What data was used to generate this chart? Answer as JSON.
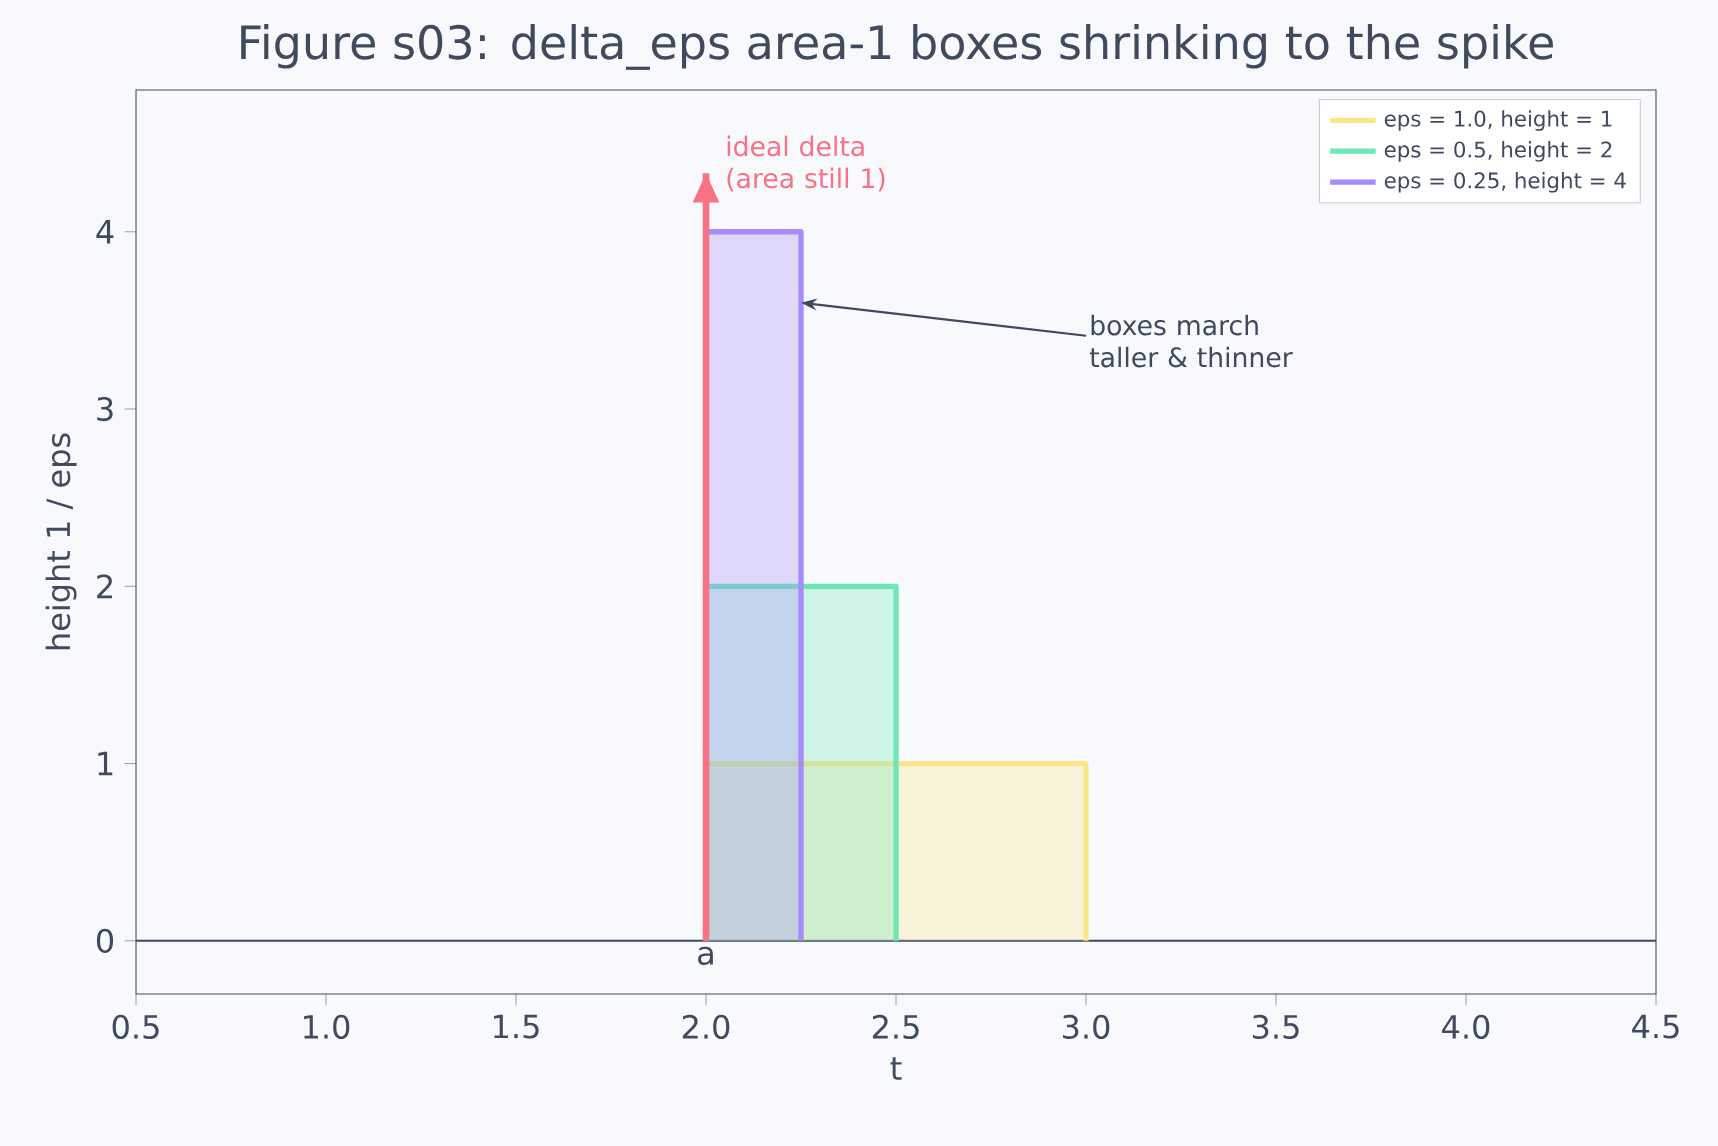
{
  "chart_data": {
    "type": "area",
    "title": "Figure s03: delta_eps area-1 boxes shrinking to the spike",
    "xlabel": "t",
    "ylabel": "height  1 / eps",
    "series": [
      {
        "name": "eps = 1.0,  height = 1",
        "color": "#fde68a",
        "x": [
          2,
          2,
          3,
          3
        ],
        "values": [
          0,
          1,
          1,
          0
        ]
      },
      {
        "name": "eps = 0.5,  height = 2",
        "color": "#6ee7b7",
        "x": [
          2,
          2,
          2.5,
          2.5
        ],
        "values": [
          0,
          2,
          2,
          0
        ]
      },
      {
        "name": "eps = 0.25,  height = 4",
        "color": "#a78bfa",
        "x": [
          2,
          2,
          2.25,
          2.25
        ],
        "values": [
          0,
          4,
          4,
          0
        ]
      },
      {
        "type": "line",
        "color": "#f87185",
        "x": [
          2,
          2
        ],
        "values": [
          0,
          4.33
        ]
      }
    ],
    "annotations": [
      "ideal delta (area still 1)",
      {
        "text": "boxes march taller & thinner",
        "x": 2.25,
        "y": 3.6
      },
      {
        "text": "a",
        "x": 2,
        "y": 0
      }
    ],
    "ref_lines": [
      {
        "axis": "y",
        "value": 0,
        "color": "#3f4a5e"
      }
    ],
    "xlim": [
      0.5,
      4.5
    ],
    "ylim": [
      -0.3,
      4.8
    ],
    "xticks": [
      0.5,
      {
        "value": 1,
        "label": "1.0"
      },
      1.5,
      {
        "value": 2,
        "label": "2.0"
      },
      2.5,
      {
        "value": 3,
        "label": "3.0"
      },
      3.5,
      {
        "value": 4,
        "label": "4.0"
      },
      4.5
    ],
    "yticks": [
      0,
      1,
      2,
      3,
      4
    ],
    "grid": false,
    "legend": "top right"
  }
}
